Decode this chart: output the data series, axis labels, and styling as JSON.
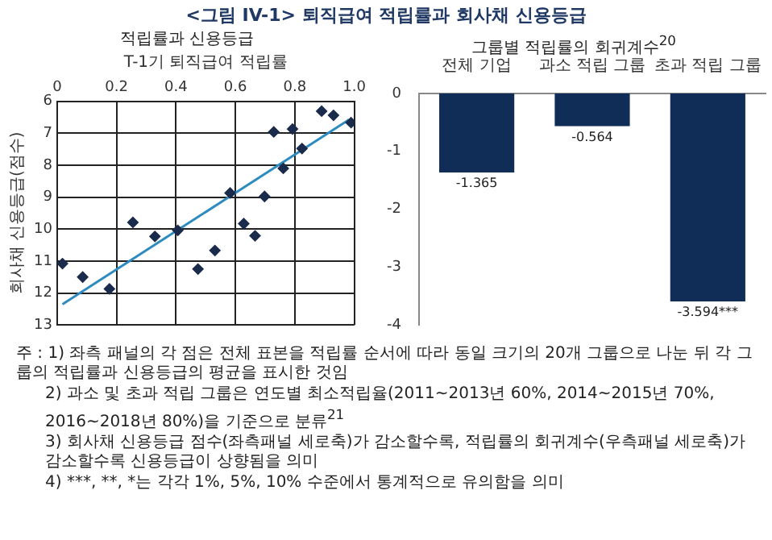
{
  "chart_data": [
    {
      "type": "other",
      "title": "<그림 IV-1> 퇴직급여 적립률과 회사채 신용등급",
      "annotations": [
        "주 : 1) 좌측 패널의 각 점은 전체 표본을 적립률 순서에 따라 동일 크기의 20개 그룹으로 나눈 뒤 각 그룹의 적립률과 신용등급의 평균을 표시한 것임",
        "2) 과소 및 초과 적립 그룹은 연도별 최소적립율(2011~2013년 60%, 2014~2015년 70%, 2016~2018년 80%)을 기준으로 분류$^{21}$",
        "3) 회사채 신용등급 점수(좌측패널 세로축)가 감소할수록, 적립률의 회귀계수(우측패널 세로축)가 감소할수록 신용등급이 상향됨을 의미",
        "4) ***, **, *는 각각 1%, 5%, 10% 수준에서 통계적으로 유의함을 의미"
      ]
    },
    {
      "type": "scatter",
      "title": "적립률과 신용등급",
      "xlabel": "T-1기 퇴직급여 적립률",
      "ylabel": "회사채 신용등급(점수)",
      "xlim": [
        0,
        1
      ],
      "xticks": [
        0,
        0.2,
        0.4,
        0.6,
        0.8,
        {
          "value": 1,
          "label": "1.0"
        }
      ],
      "ylim": [
        13,
        6
      ],
      "yticks": [
        6,
        7,
        8,
        9,
        10,
        11,
        12,
        13
      ],
      "grid": true,
      "series": [
        {
          "type": "scatter",
          "marker": "diamond",
          "color": "#1a2b4c",
          "x": [
            0.018,
            0.086,
            0.176,
            0.255,
            0.329,
            0.406,
            0.474,
            0.531,
            0.582,
            0.628,
            0.666,
            0.698,
            0.729,
            0.761,
            0.792,
            0.824,
            0.89,
            0.93,
            0.989
          ],
          "values": [
            11.08,
            11.5,
            11.87,
            9.79,
            10.23,
            10.04,
            11.25,
            10.67,
            8.87,
            9.83,
            10.21,
            8.98,
            6.96,
            8.1,
            6.87,
            7.48,
            6.31,
            6.44,
            6.67
          ]
        },
        {
          "type": "line",
          "color": "#2e8bc0",
          "x": [
            0.018,
            0.982
          ],
          "values": [
            12.35,
            6.58
          ]
        }
      ]
    },
    {
      "type": "bar",
      "title": "그룹별 적립률의 회귀계수$^{20}$",
      "categories": [
        "전체 기업",
        "과소 적립 그룹",
        "초과 적립 그룹"
      ],
      "values": [
        -1.365,
        -0.564,
        -3.594
      ],
      "value_labels": [
        "-1.365",
        "-0.564",
        "-3.594***"
      ],
      "color": "#0f2d56",
      "ylim": [
        -4,
        0
      ],
      "yticks": [
        0,
        -1,
        -2,
        -3,
        -4
      ]
    }
  ]
}
